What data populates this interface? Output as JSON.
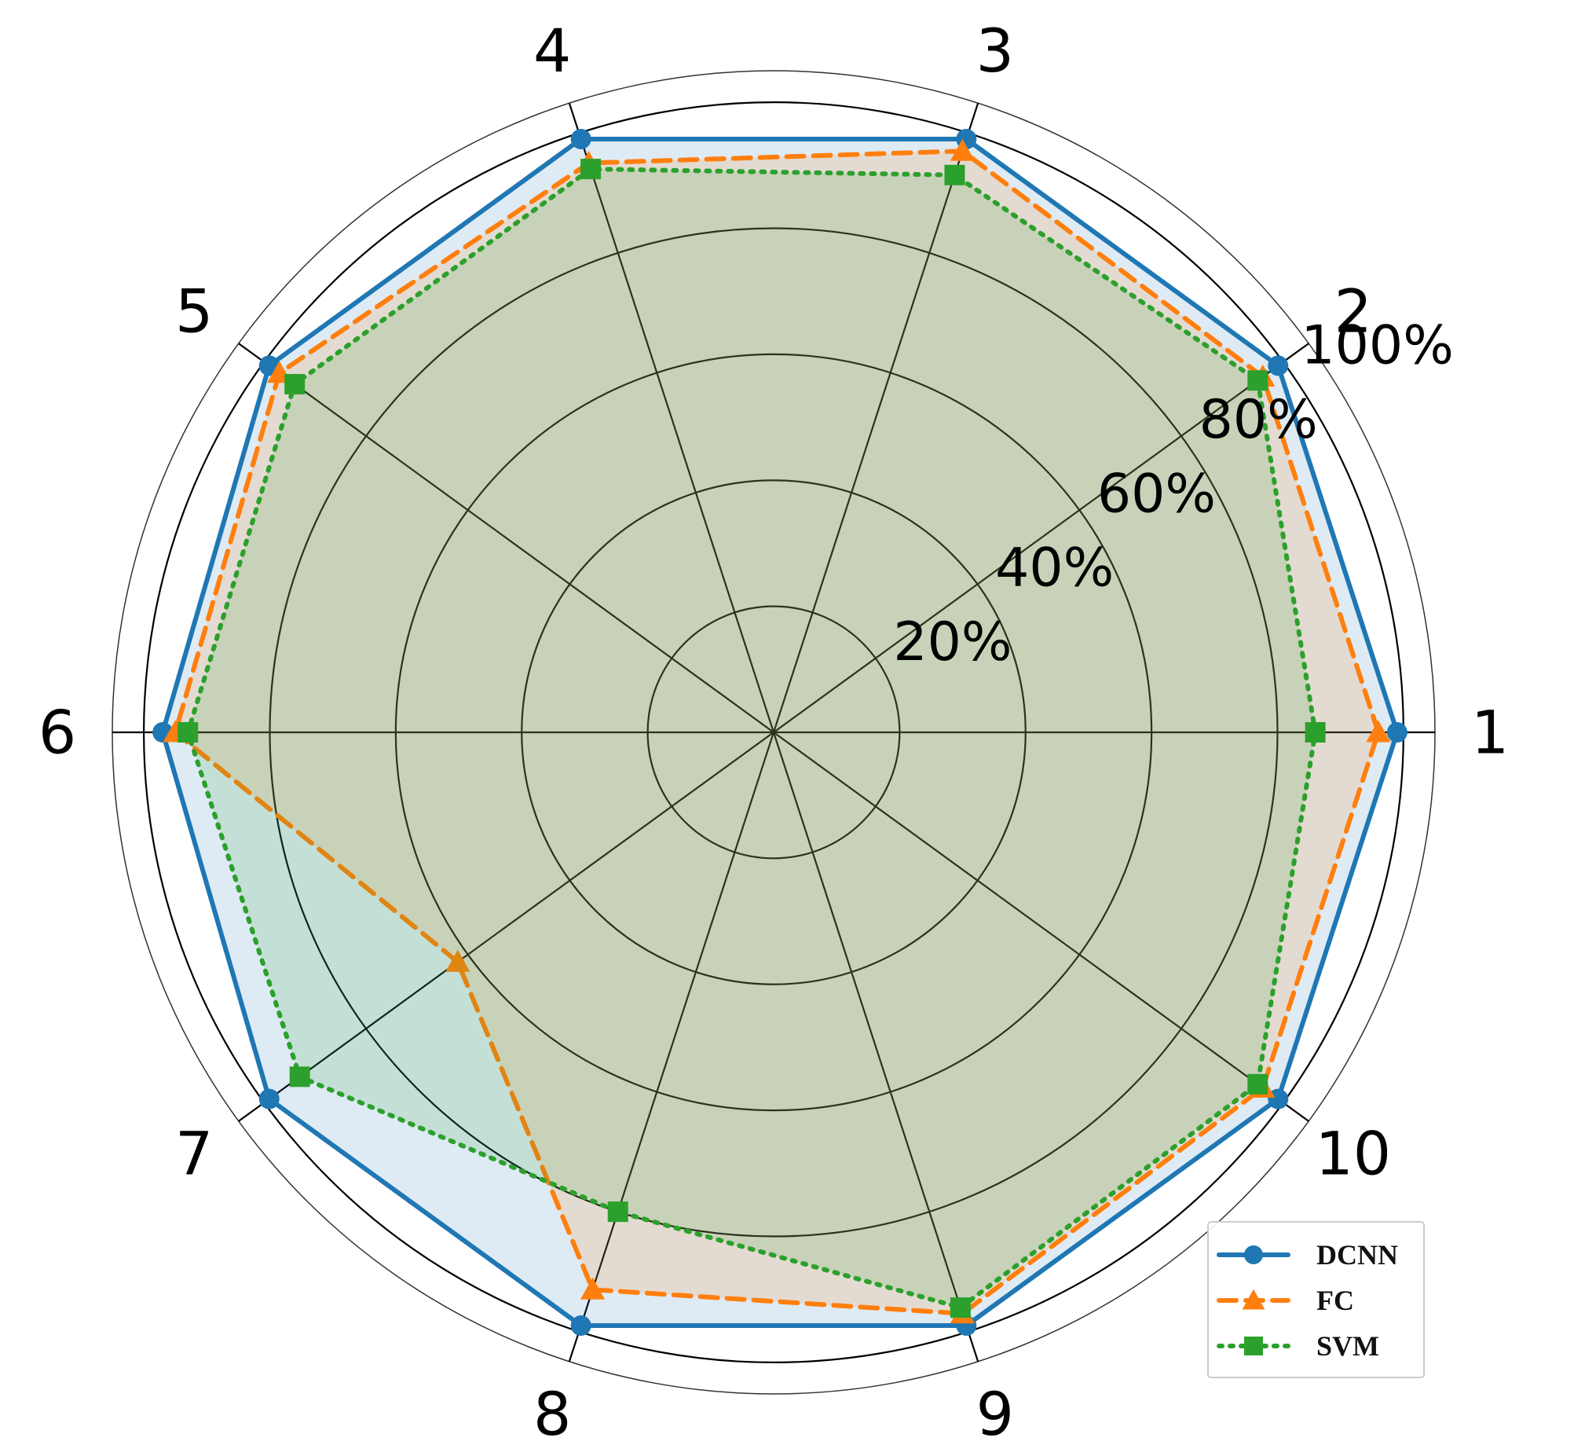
{
  "chart_data": {
    "type": "radar",
    "categories": [
      "1",
      "2",
      "3",
      "4",
      "5",
      "6",
      "7",
      "8",
      "9",
      "10"
    ],
    "r_ticks": [
      20,
      40,
      60,
      80,
      100
    ],
    "r_tick_labels": [
      "20%",
      "40%",
      "60%",
      "80%",
      "100%"
    ],
    "r_max": 105,
    "grid": true,
    "legend_position": "bottom-right",
    "series": [
      {
        "name": "DCNN",
        "values": [
          99,
          99,
          99,
          99,
          99,
          97,
          99,
          99,
          99,
          99
        ],
        "color": "#1f77b4",
        "line_style": "solid",
        "marker": "circle"
      },
      {
        "name": "FC",
        "values": [
          96,
          96,
          97,
          95,
          97,
          95,
          62,
          93,
          97,
          96
        ],
        "color": "#ff7f0e",
        "line_style": "dashed",
        "marker": "triangle"
      },
      {
        "name": "SVM",
        "values": [
          86,
          95,
          93,
          94,
          94,
          93,
          93,
          80,
          96,
          95
        ],
        "color": "#2ca02c",
        "line_style": "dotted",
        "marker": "square"
      }
    ]
  }
}
